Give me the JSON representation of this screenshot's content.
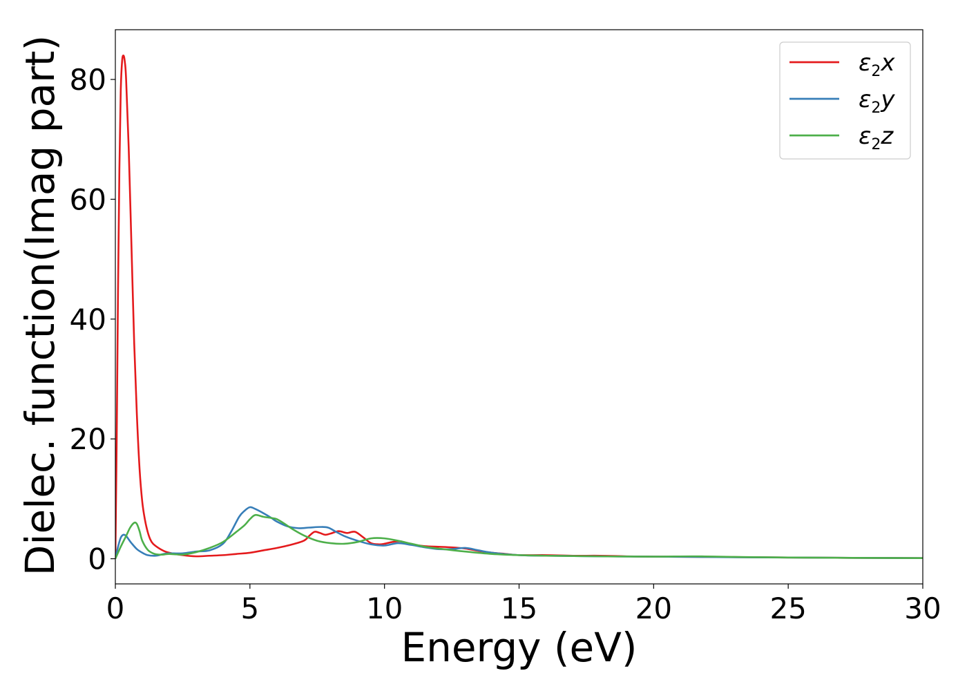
{
  "chart_data": {
    "type": "line",
    "title": "",
    "xlabel": "Energy (eV)",
    "ylabel": "Dielec. function(Imag part)",
    "xlim": [
      0,
      30
    ],
    "ylim": [
      -4.2,
      88.3
    ],
    "xticks": [
      0,
      5,
      10,
      15,
      20,
      25,
      30
    ],
    "yticks": [
      0,
      20,
      40,
      60,
      80
    ],
    "grid": false,
    "legend_position": "top-right",
    "series": [
      {
        "name": "ε₂x",
        "legend": {
          "base": "ε",
          "sub": "2",
          "suffix": "x"
        },
        "color": "#e41a1c",
        "x": [
          0,
          0.05,
          0.1,
          0.15,
          0.2,
          0.25,
          0.3,
          0.35,
          0.4,
          0.5,
          0.6,
          0.7,
          0.8,
          0.9,
          1.0,
          1.1,
          1.2,
          1.3,
          1.4,
          1.6,
          1.8,
          2.0,
          2.5,
          3.0,
          3.5,
          4.0,
          4.5,
          5.0,
          5.5,
          6.0,
          6.5,
          7.0,
          7.2,
          7.4,
          7.6,
          7.8,
          8.0,
          8.3,
          8.6,
          8.9,
          9.2,
          9.5,
          9.8,
          10.0,
          10.3,
          10.6,
          11.0,
          11.5,
          12.0,
          12.5,
          13.0,
          13.5,
          14.0,
          14.5,
          15.0,
          16.0,
          17.0,
          18.0,
          19.0,
          20.0,
          22.0,
          25.0,
          30.0
        ],
        "y": [
          0,
          20,
          45,
          65,
          78,
          83,
          84,
          83,
          80,
          68,
          52,
          36,
          24,
          15,
          9.5,
          6.5,
          4.5,
          3.2,
          2.5,
          1.8,
          1.3,
          1.0,
          0.6,
          0.4,
          0.5,
          0.6,
          0.8,
          1.0,
          1.4,
          1.8,
          2.3,
          3.0,
          3.8,
          4.5,
          4.3,
          4.0,
          4.2,
          4.6,
          4.3,
          4.5,
          3.6,
          2.6,
          2.4,
          2.5,
          2.8,
          2.9,
          2.4,
          2.1,
          2.0,
          1.9,
          1.7,
          1.3,
          1.0,
          0.8,
          0.6,
          0.6,
          0.5,
          0.5,
          0.4,
          0.35,
          0.3,
          0.2,
          0.1
        ]
      },
      {
        "name": "ε₂y",
        "legend": {
          "base": "ε",
          "sub": "2",
          "suffix": "y"
        },
        "color": "#377eb8",
        "x": [
          0,
          0.1,
          0.2,
          0.3,
          0.4,
          0.5,
          0.6,
          0.8,
          1.0,
          1.2,
          1.5,
          1.8,
          2.0,
          2.5,
          3.0,
          3.5,
          4.0,
          4.3,
          4.6,
          4.8,
          5.0,
          5.2,
          5.5,
          5.8,
          6.0,
          6.4,
          6.8,
          7.2,
          7.6,
          7.9,
          8.2,
          8.5,
          9.0,
          9.5,
          10.0,
          10.5,
          11.0,
          11.5,
          12.0,
          12.5,
          13.0,
          13.5,
          14.0,
          15.0,
          16.0,
          18.0,
          20.0,
          21.5,
          23.0,
          25.0,
          30.0
        ],
        "y": [
          0,
          2.0,
          3.5,
          4.0,
          3.8,
          3.2,
          2.6,
          1.6,
          1.0,
          0.6,
          0.5,
          0.8,
          0.9,
          0.9,
          1.2,
          1.4,
          2.5,
          4.5,
          7.0,
          8.0,
          8.6,
          8.3,
          7.6,
          6.8,
          6.2,
          5.4,
          5.1,
          5.2,
          5.3,
          5.2,
          4.5,
          3.8,
          3.0,
          2.4,
          2.2,
          2.6,
          2.3,
          1.9,
          1.6,
          1.6,
          1.8,
          1.4,
          1.0,
          0.6,
          0.5,
          0.4,
          0.35,
          0.3,
          0.25,
          0.2,
          0.1
        ]
      },
      {
        "name": "ε₂z",
        "legend": {
          "base": "ε",
          "sub": "2",
          "suffix": "z"
        },
        "color": "#4daf4a",
        "x": [
          0,
          0.2,
          0.4,
          0.55,
          0.7,
          0.8,
          0.9,
          1.0,
          1.2,
          1.4,
          1.6,
          1.8,
          2.0,
          2.5,
          3.0,
          3.5,
          4.0,
          4.5,
          4.8,
          5.0,
          5.2,
          5.5,
          5.8,
          6.0,
          6.3,
          6.6,
          7.0,
          7.5,
          8.0,
          8.5,
          9.0,
          9.5,
          10.0,
          10.5,
          11.0,
          11.5,
          12.0,
          13.0,
          14.0,
          15.0,
          16.0,
          18.0,
          20.0,
          21.5,
          23.0,
          25.0,
          30.0
        ],
        "y": [
          0,
          2.0,
          3.8,
          5.2,
          6.0,
          5.8,
          4.6,
          3.0,
          1.5,
          0.9,
          0.7,
          0.7,
          0.8,
          0.7,
          1.1,
          1.8,
          2.8,
          4.5,
          5.6,
          6.6,
          7.3,
          7.0,
          6.8,
          6.6,
          5.8,
          4.9,
          3.9,
          3.0,
          2.6,
          2.5,
          2.8,
          3.4,
          3.4,
          3.0,
          2.5,
          2.0,
          1.7,
          1.2,
          0.8,
          0.6,
          0.5,
          0.4,
          0.35,
          0.4,
          0.3,
          0.2,
          0.1
        ]
      }
    ]
  }
}
